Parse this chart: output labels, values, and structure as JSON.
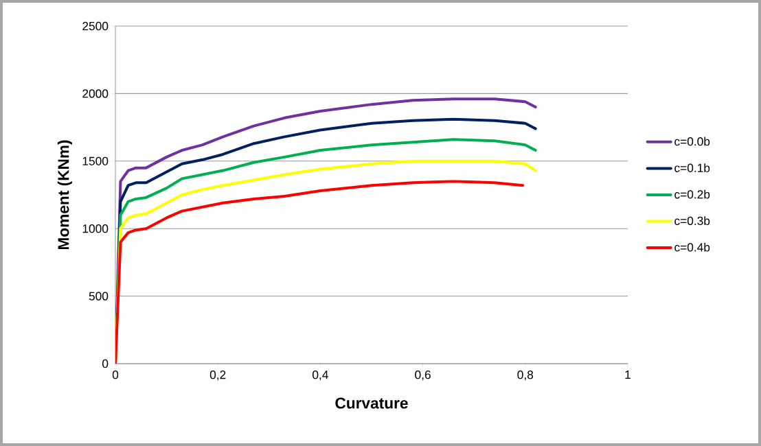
{
  "chart_data": {
    "type": "line",
    "xlabel": "Curvature",
    "ylabel": "Moment (KNm)",
    "xlim": [
      0,
      1
    ],
    "xticks": [
      0,
      {
        "value": 0.2,
        "label": "0,2"
      },
      {
        "value": 0.4,
        "label": "0,4"
      },
      {
        "value": 0.6,
        "label": "0,6"
      },
      {
        "value": 0.8,
        "label": "0,8"
      },
      1
    ],
    "ylim": [
      0,
      2500
    ],
    "yticks": [
      0,
      500,
      1000,
      1500,
      2000,
      2500
    ],
    "grid": "y",
    "legend": "right",
    "marker": "none",
    "line_style": "solid",
    "x": [
      0,
      0.01,
      0.025,
      0.04,
      0.06,
      0.1,
      0.13,
      0.17,
      0.21,
      0.27,
      0.33,
      0.4,
      0.5,
      0.58,
      0.66,
      0.74,
      0.8,
      0.82
    ],
    "series": [
      {
        "name": "c=0.0b",
        "color": "#7030a0",
        "values": [
          0,
          1350,
          1430,
          1450,
          1450,
          1530,
          1580,
          1620,
          1680,
          1760,
          1820,
          1870,
          1920,
          1950,
          1960,
          1960,
          1940,
          1900
        ]
      },
      {
        "name": "c=0.1b",
        "color": "#002060",
        "values": [
          0,
          1200,
          1320,
          1340,
          1340,
          1420,
          1480,
          1510,
          1550,
          1630,
          1680,
          1730,
          1780,
          1800,
          1810,
          1800,
          1780,
          1740
        ]
      },
      {
        "name": "c=0.2b",
        "color": "#00b050",
        "values": [
          0,
          1100,
          1200,
          1220,
          1230,
          1300,
          1370,
          1400,
          1430,
          1490,
          1530,
          1580,
          1620,
          1640,
          1660,
          1650,
          1620,
          1580
        ]
      },
      {
        "name": "c=0.3b",
        "color": "#ffff00",
        "values": [
          0,
          1000,
          1080,
          1100,
          1110,
          1190,
          1250,
          1290,
          1320,
          1360,
          1400,
          1440,
          1480,
          1500,
          1500,
          1500,
          1480,
          1430
        ]
      },
      {
        "name": "c=0.4b",
        "color": "#ff0000",
        "x": [
          0,
          0.01,
          0.025,
          0.04,
          0.06,
          0.1,
          0.13,
          0.17,
          0.21,
          0.27,
          0.33,
          0.4,
          0.5,
          0.58,
          0.66,
          0.74,
          0.795
        ],
        "values": [
          0,
          900,
          970,
          990,
          1000,
          1080,
          1130,
          1160,
          1190,
          1220,
          1240,
          1280,
          1320,
          1340,
          1350,
          1340,
          1320
        ]
      }
    ]
  }
}
